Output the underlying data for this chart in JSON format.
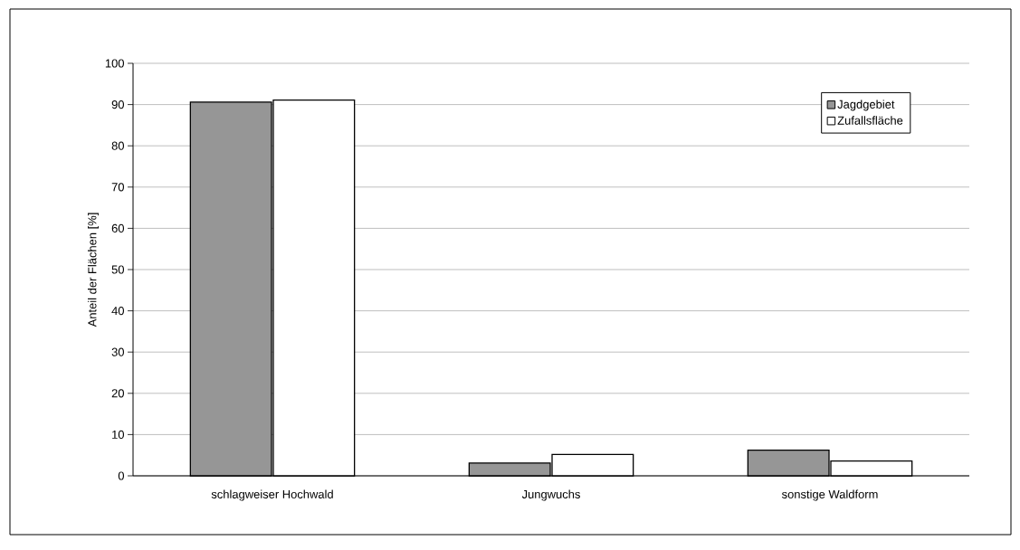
{
  "chart_data": {
    "type": "bar",
    "ylabel": "Anteil der Flächen [%]",
    "categories": [
      "schlagweiser Hochwald",
      "Jungwuchs",
      "sonstige Waldform"
    ],
    "series": [
      {
        "name": "Jagdgebiet",
        "color": "#969696",
        "values": [
          90.6,
          3.1,
          6.2
        ]
      },
      {
        "name": "Zufallsfläche",
        "color": "#ffffff",
        "values": [
          91.1,
          5.2,
          3.6
        ]
      }
    ],
    "ylim": [
      0,
      100
    ],
    "yticks": [
      0,
      10,
      20,
      30,
      40,
      50,
      60,
      70,
      80,
      90,
      100
    ],
    "grid": "y",
    "legend": "top right"
  }
}
